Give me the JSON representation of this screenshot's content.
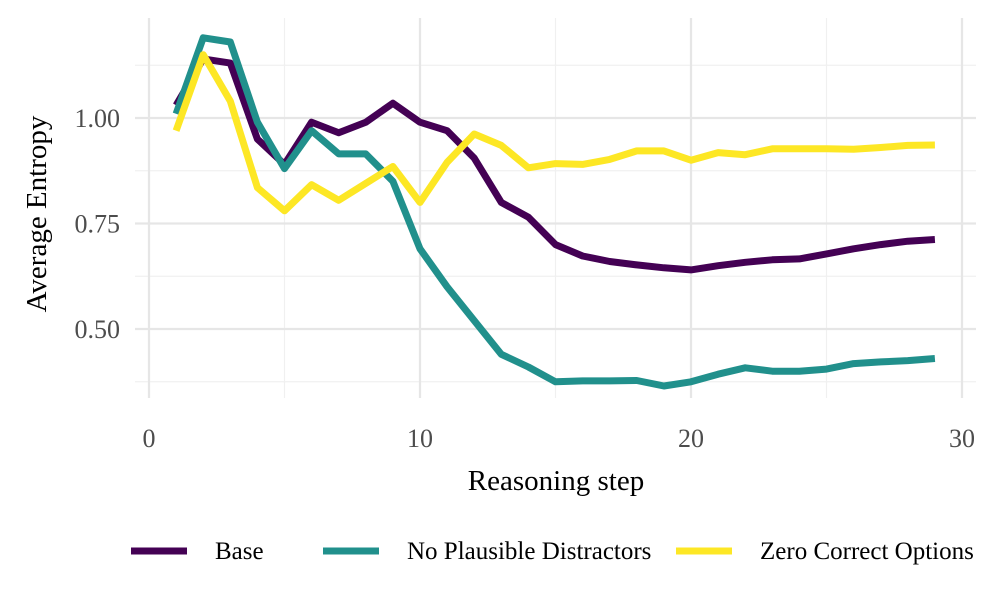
{
  "chart_data": {
    "type": "line",
    "xlabel": "Reasoning step",
    "ylabel": "Average Entropy",
    "xlim": [
      0,
      30
    ],
    "ylim": [
      0.325,
      1.225
    ],
    "x_ticks": [
      0,
      10,
      20,
      30
    ],
    "x_tick_labels": [
      "0",
      "10",
      "20",
      "30"
    ],
    "y_ticks": [
      0.5,
      0.75,
      1.0
    ],
    "y_tick_labels": [
      "0.50",
      "0.75",
      "1.00"
    ],
    "grid": true,
    "legend_position": "bottom",
    "x": [
      1,
      2,
      3,
      4,
      5,
      6,
      7,
      8,
      9,
      10,
      11,
      12,
      13,
      14,
      15,
      16,
      17,
      18,
      19,
      20,
      21,
      22,
      23,
      24,
      25,
      26,
      27,
      28,
      29
    ],
    "series": [
      {
        "name": "Base",
        "color": "#440154",
        "values": [
          1.03,
          1.14,
          1.13,
          0.95,
          0.89,
          0.99,
          0.965,
          0.99,
          1.035,
          0.99,
          0.97,
          0.905,
          0.8,
          0.765,
          0.7,
          0.673,
          0.66,
          0.652,
          0.645,
          0.64,
          0.65,
          0.658,
          0.664,
          0.666,
          0.678,
          0.69,
          0.7,
          0.708,
          0.712
        ]
      },
      {
        "name": "No Plausible Distractors",
        "color": "#21908C",
        "values": [
          1.01,
          1.19,
          1.18,
          0.99,
          0.88,
          0.97,
          0.915,
          0.915,
          0.85,
          0.69,
          0.6,
          0.52,
          0.44,
          0.41,
          0.375,
          0.377,
          0.377,
          0.378,
          0.365,
          0.375,
          0.393,
          0.408,
          0.4,
          0.4,
          0.405,
          0.418,
          0.422,
          0.425,
          0.43
        ]
      },
      {
        "name": "Zero Correct Options",
        "color": "#FDE725",
        "values": [
          0.97,
          1.15,
          1.04,
          0.835,
          0.78,
          0.842,
          0.805,
          0.845,
          0.885,
          0.8,
          0.895,
          0.962,
          0.935,
          0.882,
          0.892,
          0.89,
          0.902,
          0.922,
          0.922,
          0.9,
          0.918,
          0.913,
          0.927,
          0.927,
          0.927,
          0.926,
          0.93,
          0.935,
          0.936
        ]
      }
    ]
  }
}
